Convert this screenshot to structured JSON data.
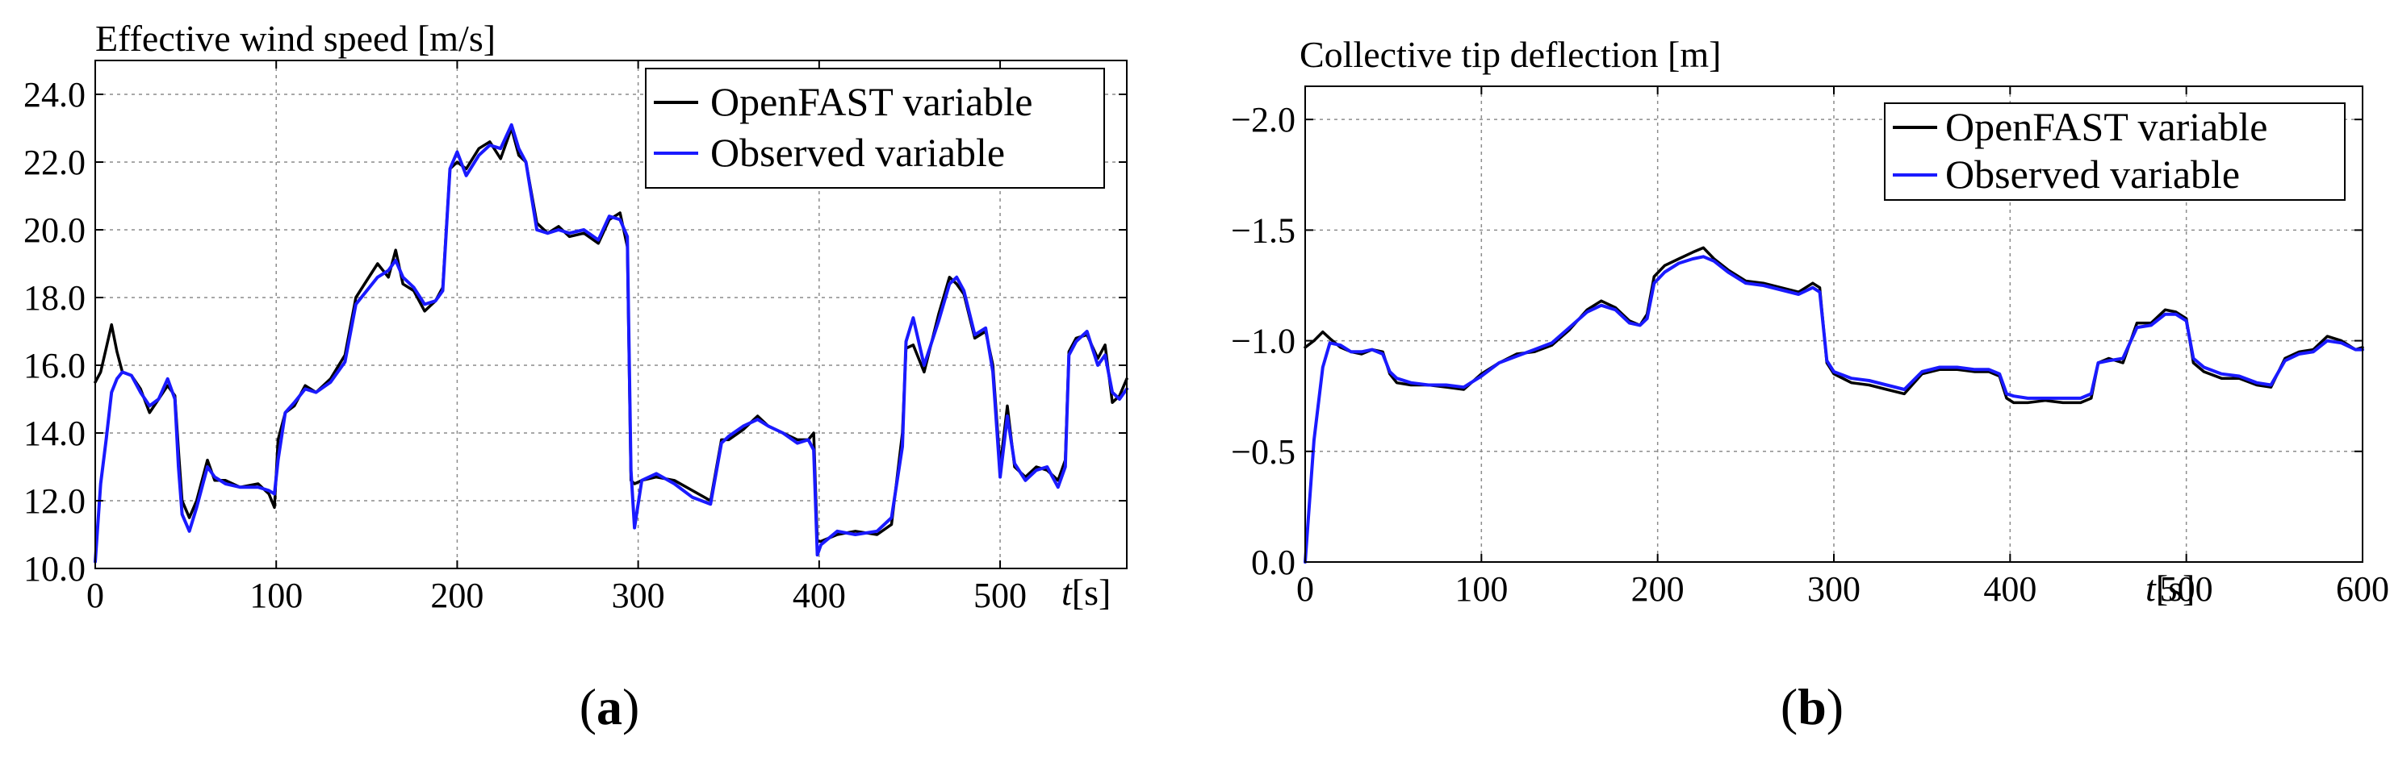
{
  "figure": {
    "panel_labels": [
      "(a)",
      "(b)"
    ]
  },
  "chart_data": [
    {
      "type": "line",
      "panel": "a",
      "title": "Effective wind speed [m/s]",
      "xlabel": "t [s]",
      "xlabel_var": "t",
      "xlabel_unit": "[s]",
      "ylabel": "",
      "xlim": [
        0,
        570
      ],
      "ylim": [
        10,
        25
      ],
      "y_reversed": false,
      "xticks": [
        0,
        100,
        200,
        300,
        400,
        500
      ],
      "xtick_labels": [
        "0",
        "100",
        "200",
        "300",
        "400",
        "500"
      ],
      "yticks": [
        10,
        12,
        14,
        16,
        18,
        20,
        22,
        24
      ],
      "ytick_labels": [
        "10.0",
        "12.0",
        "14.0",
        "16.0",
        "18.0",
        "20.0",
        "22.0",
        "24.0"
      ],
      "grid": true,
      "legend_position": "top-right",
      "series": [
        {
          "name": "OpenFAST variable",
          "color": "#000000",
          "x": [
            0,
            3,
            6,
            9,
            12,
            15,
            20,
            25,
            30,
            35,
            40,
            44,
            46,
            48,
            52,
            56,
            62,
            66,
            72,
            80,
            90,
            96,
            99,
            101,
            105,
            110,
            116,
            122,
            130,
            138,
            144,
            150,
            156,
            162,
            166,
            170,
            176,
            182,
            188,
            192,
            196,
            200,
            205,
            212,
            218,
            224,
            230,
            234,
            238,
            244,
            250,
            256,
            262,
            270,
            278,
            284,
            290,
            294,
            296,
            298,
            302,
            310,
            320,
            330,
            340,
            346,
            350,
            358,
            366,
            372,
            380,
            388,
            394,
            397,
            399,
            401,
            410,
            420,
            432,
            440,
            446,
            448,
            452,
            458,
            466,
            472,
            476,
            480,
            486,
            492,
            496,
            500,
            504,
            508,
            514,
            520,
            526,
            532,
            536,
            538,
            542,
            548,
            554,
            558,
            562,
            566,
            570
          ],
          "y": [
            15.5,
            15.8,
            16.5,
            17.2,
            16.4,
            15.8,
            15.7,
            15.3,
            14.6,
            15.0,
            15.4,
            15.1,
            13.5,
            12.0,
            11.5,
            12.0,
            13.2,
            12.6,
            12.6,
            12.4,
            12.5,
            12.2,
            11.8,
            13.8,
            14.6,
            14.8,
            15.4,
            15.2,
            15.6,
            16.3,
            18.0,
            18.5,
            19.0,
            18.6,
            19.4,
            18.4,
            18.2,
            17.6,
            17.9,
            18.3,
            21.8,
            22.0,
            21.8,
            22.4,
            22.6,
            22.1,
            23.0,
            22.2,
            22.0,
            20.2,
            19.9,
            20.1,
            19.8,
            19.9,
            19.6,
            20.3,
            20.5,
            19.5,
            12.6,
            12.5,
            12.6,
            12.7,
            12.6,
            12.3,
            12.0,
            13.8,
            13.8,
            14.1,
            14.5,
            14.2,
            14.0,
            13.8,
            13.8,
            14.0,
            10.8,
            10.8,
            11.0,
            11.1,
            11.0,
            11.3,
            14.0,
            16.5,
            16.6,
            15.8,
            17.5,
            18.6,
            18.4,
            18.1,
            16.8,
            17.0,
            16.0,
            13.0,
            14.8,
            13.0,
            12.7,
            13.0,
            12.9,
            12.6,
            13.2,
            16.4,
            16.8,
            16.9,
            16.2,
            16.6,
            14.9,
            15.1,
            15.6
          ]
        },
        {
          "name": "Observed variable",
          "color": "#1a1aff",
          "x": [
            0,
            3,
            6,
            9,
            12,
            15,
            20,
            25,
            30,
            35,
            40,
            44,
            46,
            48,
            52,
            56,
            62,
            66,
            72,
            80,
            90,
            96,
            99,
            101,
            105,
            110,
            116,
            122,
            130,
            138,
            144,
            150,
            156,
            162,
            166,
            170,
            176,
            182,
            188,
            192,
            196,
            200,
            205,
            212,
            218,
            224,
            230,
            234,
            238,
            244,
            250,
            256,
            262,
            270,
            278,
            284,
            290,
            294,
            296,
            298,
            302,
            310,
            320,
            330,
            340,
            346,
            350,
            358,
            366,
            372,
            380,
            388,
            394,
            397,
            399,
            401,
            410,
            420,
            432,
            440,
            446,
            448,
            452,
            458,
            466,
            472,
            476,
            480,
            486,
            492,
            496,
            500,
            504,
            508,
            514,
            520,
            526,
            532,
            536,
            538,
            542,
            548,
            554,
            558,
            562,
            566,
            570
          ],
          "y": [
            10.2,
            12.5,
            13.8,
            15.2,
            15.6,
            15.8,
            15.7,
            15.2,
            14.8,
            15.0,
            15.6,
            15.0,
            13.0,
            11.6,
            11.1,
            11.8,
            13.0,
            12.7,
            12.5,
            12.4,
            12.4,
            12.3,
            12.2,
            13.2,
            14.6,
            14.9,
            15.3,
            15.2,
            15.5,
            16.1,
            17.8,
            18.2,
            18.6,
            18.8,
            19.1,
            18.6,
            18.3,
            17.8,
            17.9,
            18.2,
            21.8,
            22.3,
            21.6,
            22.2,
            22.5,
            22.4,
            23.1,
            22.4,
            22.0,
            20.0,
            19.9,
            20.0,
            19.9,
            20.0,
            19.7,
            20.4,
            20.3,
            19.8,
            12.9,
            11.2,
            12.6,
            12.8,
            12.5,
            12.1,
            11.9,
            13.7,
            13.9,
            14.2,
            14.4,
            14.2,
            14.0,
            13.7,
            13.8,
            13.5,
            10.4,
            10.7,
            11.1,
            11.0,
            11.1,
            11.5,
            13.6,
            16.7,
            17.4,
            16.0,
            17.3,
            18.4,
            18.6,
            18.2,
            16.9,
            17.1,
            15.8,
            12.7,
            14.5,
            13.1,
            12.6,
            12.9,
            13.0,
            12.4,
            13.0,
            16.3,
            16.7,
            17.0,
            16.0,
            16.3,
            15.2,
            15.0,
            15.3
          ]
        }
      ]
    },
    {
      "type": "line",
      "panel": "b",
      "title": "Collective tip deflection [m]",
      "xlabel": "t [s]",
      "xlabel_var": "t",
      "xlabel_unit": "[s]",
      "ylabel": "",
      "xlim": [
        0,
        600
      ],
      "ylim": [
        0.0,
        -2.15
      ],
      "y_reversed": true,
      "xticks": [
        0,
        100,
        200,
        300,
        400,
        500,
        600
      ],
      "xtick_labels": [
        "0",
        "100",
        "200",
        "300",
        "400",
        "500",
        "600"
      ],
      "yticks": [
        0.0,
        -0.5,
        -1.0,
        -1.5,
        -2.0
      ],
      "ytick_labels": [
        "0.0",
        "−0.5",
        "−1.0",
        "−1.5",
        "−2.0"
      ],
      "grid": true,
      "legend_position": "top-right",
      "series": [
        {
          "name": "OpenFAST variable",
          "color": "#000000",
          "x": [
            0,
            5,
            10,
            14,
            20,
            26,
            32,
            38,
            44,
            48,
            52,
            60,
            70,
            80,
            90,
            100,
            110,
            120,
            130,
            140,
            150,
            160,
            168,
            176,
            184,
            190,
            194,
            198,
            204,
            212,
            220,
            226,
            232,
            240,
            250,
            260,
            270,
            280,
            288,
            292,
            296,
            300,
            310,
            320,
            330,
            340,
            350,
            360,
            370,
            380,
            388,
            394,
            398,
            402,
            410,
            420,
            430,
            440,
            446,
            450,
            456,
            464,
            472,
            480,
            488,
            494,
            500,
            504,
            510,
            520,
            530,
            540,
            548,
            556,
            564,
            572,
            580,
            588,
            596,
            600
          ],
          "y": [
            -0.97,
            -1.0,
            -1.04,
            -1.01,
            -0.97,
            -0.95,
            -0.94,
            -0.96,
            -0.95,
            -0.85,
            -0.81,
            -0.8,
            -0.8,
            -0.79,
            -0.78,
            -0.85,
            -0.9,
            -0.94,
            -0.95,
            -0.98,
            -1.05,
            -1.14,
            -1.18,
            -1.15,
            -1.09,
            -1.07,
            -1.12,
            -1.29,
            -1.34,
            -1.37,
            -1.4,
            -1.42,
            -1.37,
            -1.32,
            -1.27,
            -1.26,
            -1.24,
            -1.22,
            -1.26,
            -1.24,
            -0.9,
            -0.85,
            -0.81,
            -0.8,
            -0.78,
            -0.76,
            -0.85,
            -0.87,
            -0.87,
            -0.86,
            -0.86,
            -0.84,
            -0.74,
            -0.72,
            -0.72,
            -0.73,
            -0.72,
            -0.72,
            -0.74,
            -0.9,
            -0.92,
            -0.9,
            -1.08,
            -1.08,
            -1.14,
            -1.13,
            -1.1,
            -0.9,
            -0.86,
            -0.83,
            -0.83,
            -0.8,
            -0.79,
            -0.92,
            -0.95,
            -0.96,
            -1.02,
            -1.0,
            -0.96,
            -0.97
          ]
        },
        {
          "name": "Observed variable",
          "color": "#1a1aff",
          "x": [
            0,
            5,
            10,
            14,
            20,
            26,
            32,
            38,
            44,
            48,
            52,
            60,
            70,
            80,
            90,
            100,
            110,
            120,
            130,
            140,
            150,
            160,
            168,
            176,
            184,
            190,
            194,
            198,
            204,
            212,
            220,
            226,
            232,
            240,
            250,
            260,
            270,
            280,
            288,
            292,
            296,
            300,
            310,
            320,
            330,
            340,
            350,
            360,
            370,
            380,
            388,
            394,
            398,
            402,
            410,
            420,
            430,
            440,
            446,
            450,
            456,
            464,
            472,
            480,
            488,
            494,
            500,
            504,
            510,
            520,
            530,
            540,
            548,
            556,
            564,
            572,
            580,
            588,
            596,
            600
          ],
          "y": [
            0.0,
            -0.55,
            -0.88,
            -0.99,
            -0.98,
            -0.95,
            -0.95,
            -0.96,
            -0.94,
            -0.86,
            -0.83,
            -0.81,
            -0.8,
            -0.8,
            -0.79,
            -0.84,
            -0.9,
            -0.93,
            -0.96,
            -0.99,
            -1.06,
            -1.13,
            -1.16,
            -1.14,
            -1.08,
            -1.07,
            -1.1,
            -1.26,
            -1.31,
            -1.35,
            -1.37,
            -1.38,
            -1.36,
            -1.31,
            -1.26,
            -1.25,
            -1.23,
            -1.21,
            -1.24,
            -1.22,
            -0.91,
            -0.86,
            -0.83,
            -0.82,
            -0.8,
            -0.78,
            -0.86,
            -0.88,
            -0.88,
            -0.87,
            -0.87,
            -0.85,
            -0.76,
            -0.75,
            -0.74,
            -0.74,
            -0.74,
            -0.74,
            -0.76,
            -0.9,
            -0.91,
            -0.92,
            -1.06,
            -1.07,
            -1.12,
            -1.12,
            -1.09,
            -0.92,
            -0.88,
            -0.85,
            -0.84,
            -0.81,
            -0.8,
            -0.91,
            -0.94,
            -0.95,
            -1.0,
            -0.99,
            -0.96,
            -0.96
          ]
        }
      ]
    }
  ]
}
